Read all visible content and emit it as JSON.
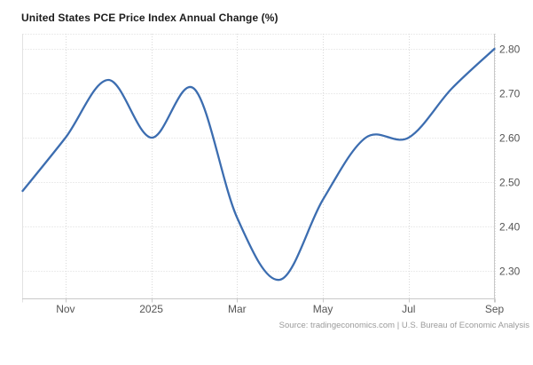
{
  "title": "United States PCE Price Index Annual Change (%)",
  "source": "Source: tradingeconomics.com | U.S. Bureau of Economic Analysis",
  "colors": {
    "line": "#3c6db0",
    "grid": "#d9d9d9",
    "axis": "#c9c9c9",
    "plot_left_border": "#e2e2e2",
    "tick_label": "#555555",
    "title_text": "#1c1c1c",
    "source_text": "#9a9a9a",
    "background": "#ffffff"
  },
  "chart_data": {
    "type": "line",
    "title": "United States PCE Price Index Annual Change (%)",
    "x": [
      "Oct 2024",
      "Nov 2024",
      "Dec 2024",
      "Jan 2025",
      "Feb 2025",
      "Mar 2025",
      "Apr 2025",
      "May 2025",
      "Jun 2025",
      "Jul 2025",
      "Aug 2025",
      "Sep 2025"
    ],
    "values": [
      2.48,
      2.6,
      2.73,
      2.6,
      2.71,
      2.42,
      2.28,
      2.46,
      2.6,
      2.6,
      2.71,
      2.8
    ],
    "series_name": "PCE Price Index Annual Change",
    "xlabel": "",
    "ylabel": "",
    "y_ticks": [
      2.3,
      2.4,
      2.5,
      2.6,
      2.7,
      2.8
    ],
    "y_tick_labels": [
      "2.30",
      "2.40",
      "2.50",
      "2.60",
      "2.70",
      "2.80"
    ],
    "x_tick_labels": [
      "Nov",
      "2025",
      "Mar",
      "May",
      "Jul",
      "Sep"
    ],
    "x_tick_month_index": [
      1,
      3,
      5,
      7,
      9,
      11
    ],
    "ylim": [
      2.237,
      2.834
    ],
    "y_axis_side": "right",
    "grid_style": "dotted",
    "smooth": true,
    "legend": "none"
  }
}
